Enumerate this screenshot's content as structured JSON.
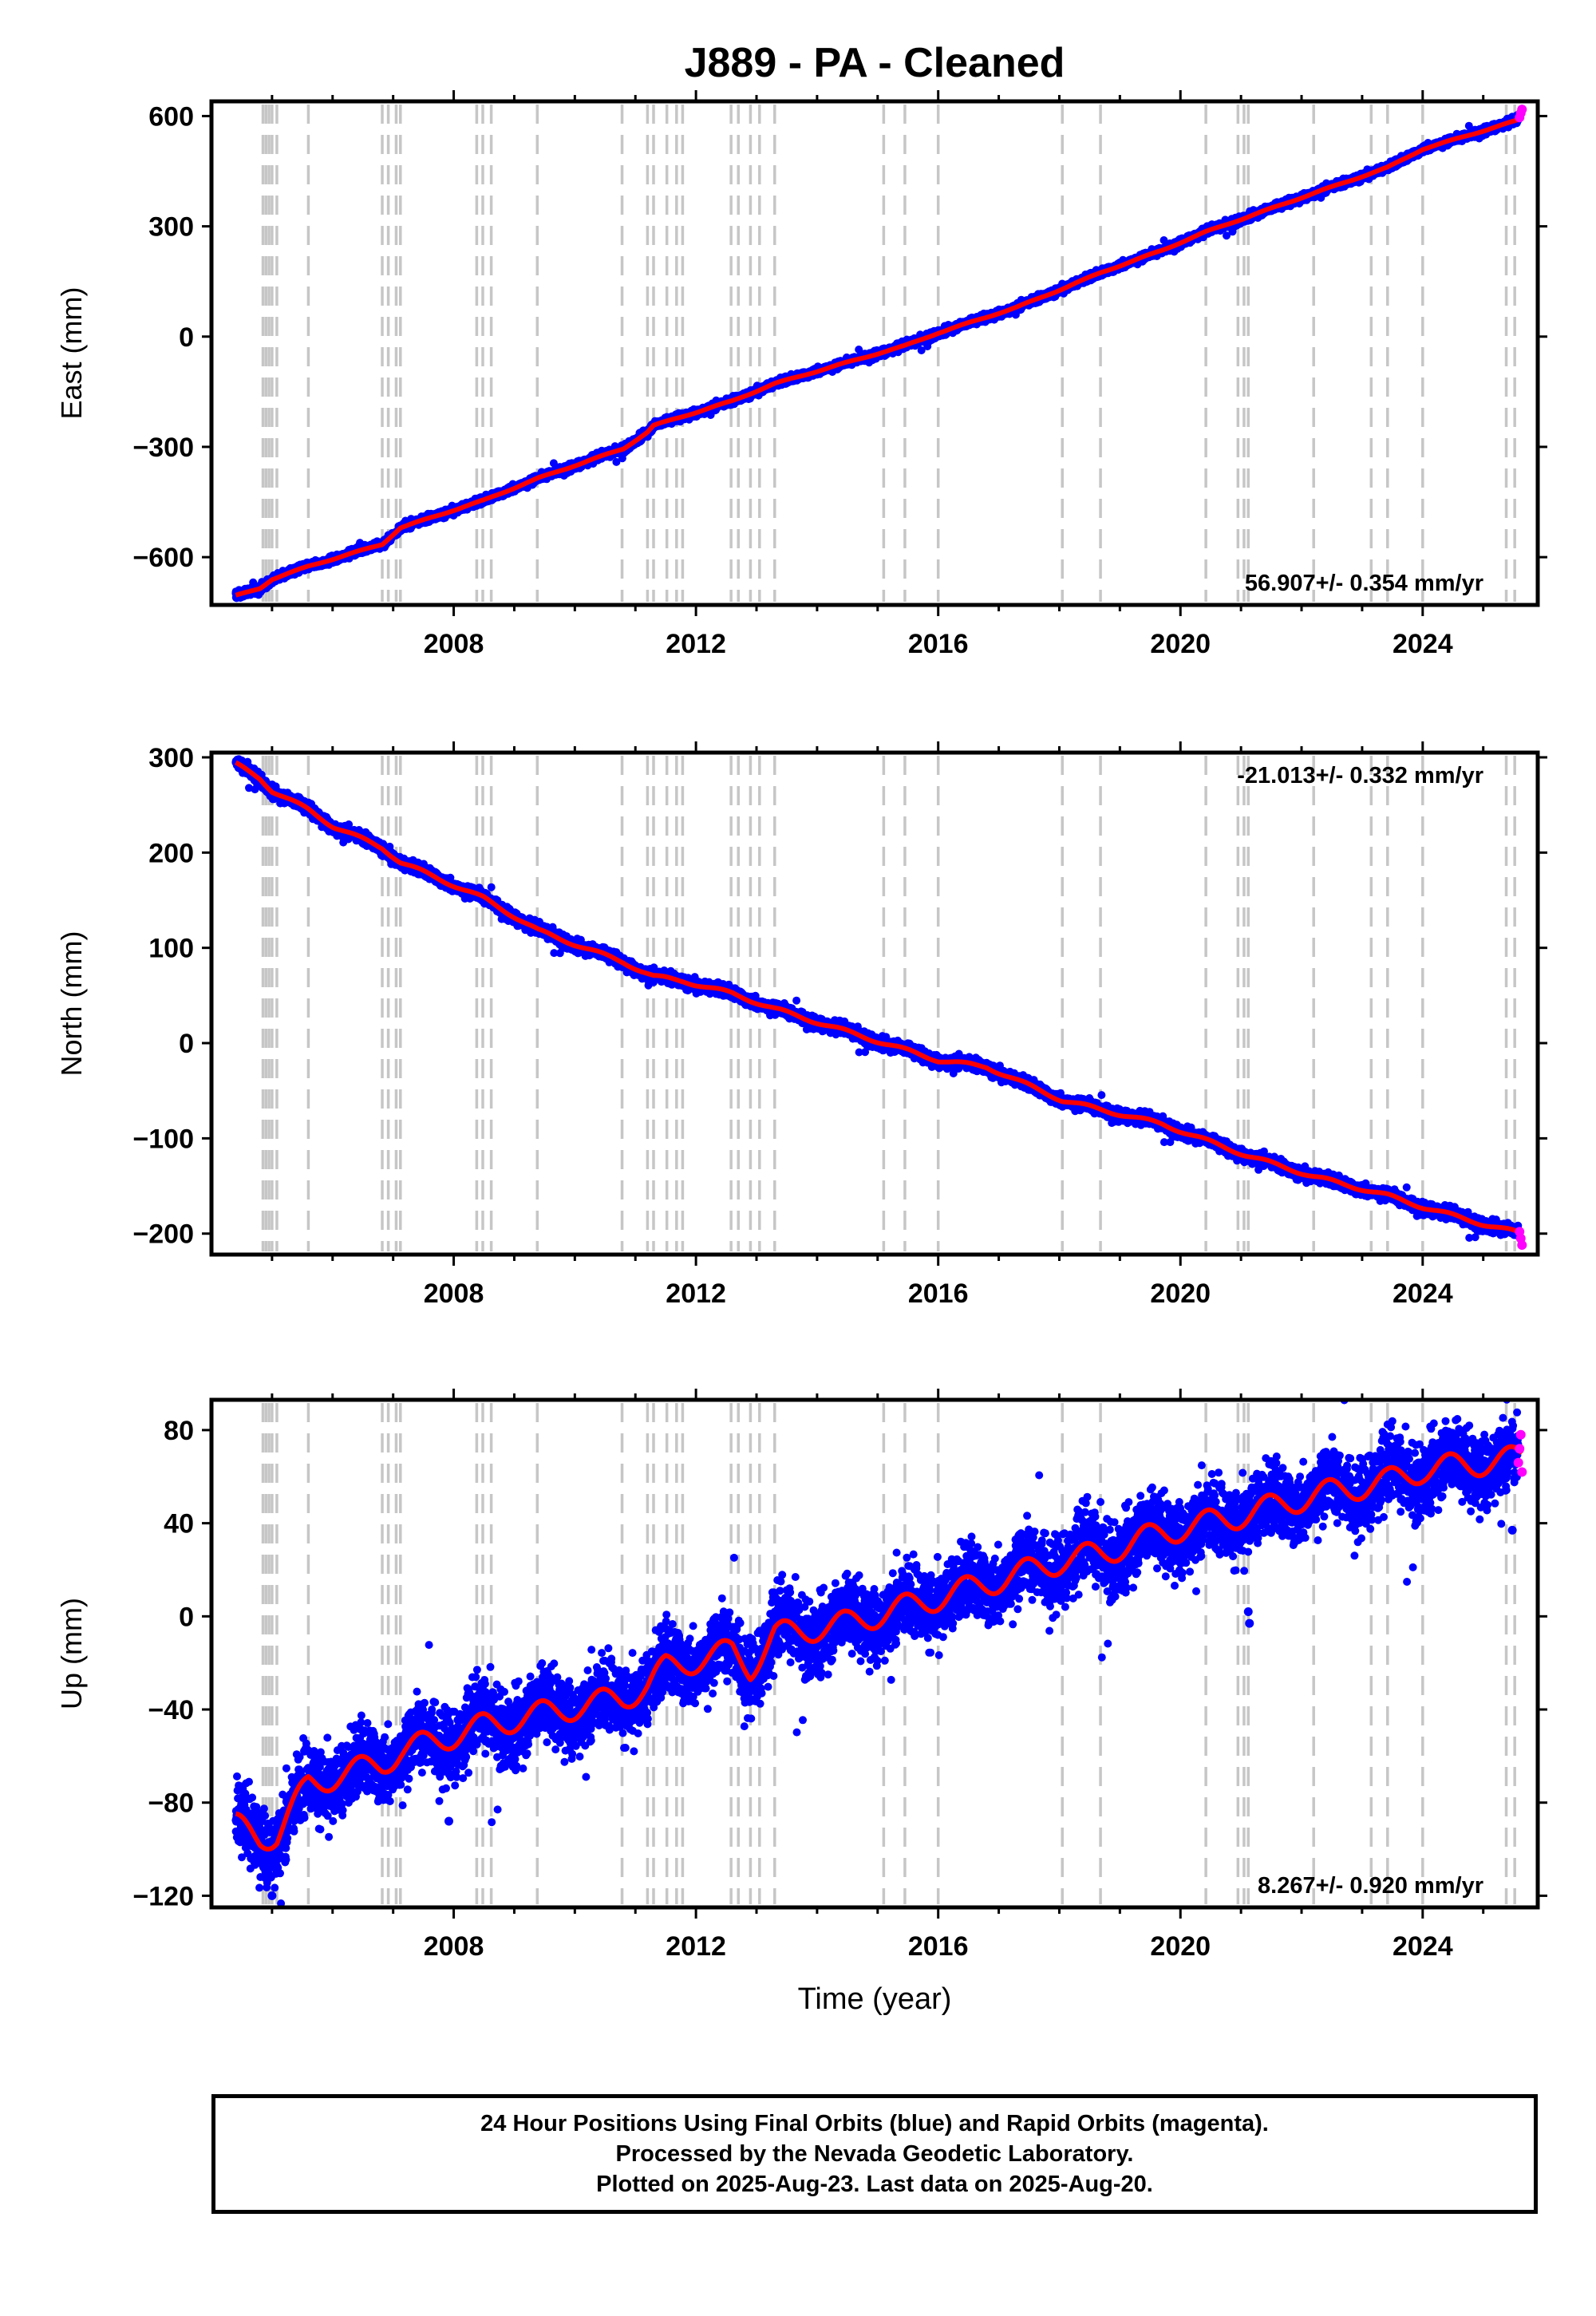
{
  "chart_data": {
    "title": "J889  - PA - Cleaned",
    "xlabel": "Time (year)",
    "xlim": [
      2004.0,
      2025.9
    ],
    "x_ticks": [
      2008,
      2012,
      2016,
      2020,
      2024
    ],
    "x_tick_labels": [
      "2008",
      "2012",
      "2016",
      "2020",
      "2024"
    ],
    "start_year": 2004.4,
    "end_year": 2025.64,
    "equipment_change_years": [
      2004.85,
      2004.9,
      2004.95,
      2005.0,
      2005.08,
      2005.6,
      2006.82,
      2006.92,
      2007.05,
      2007.12,
      2008.38,
      2008.48,
      2008.62,
      2009.38,
      2010.78,
      2011.2,
      2011.3,
      2011.52,
      2011.68,
      2011.78,
      2012.58,
      2012.7,
      2012.9,
      2013.05,
      2013.3,
      2015.1,
      2015.45,
      2016.0,
      2018.05,
      2018.68,
      2020.42,
      2020.95,
      2021.05,
      2021.12,
      2022.2,
      2023.15,
      2023.42,
      2024.0,
      2025.38,
      2025.52
    ],
    "series": [
      {
        "name": "Final Orbits (blue)",
        "color": "#0000ff"
      },
      {
        "name": "Rapid Orbits (magenta)",
        "color": "#ff00ff"
      },
      {
        "name": "Model fit",
        "color": "#ff0000"
      }
    ],
    "panels": [
      {
        "type": "scatter",
        "ylabel": "East (mm)",
        "ylim": [
          -730,
          640
        ],
        "y_ticks": [
          -600,
          -300,
          0,
          300,
          600
        ],
        "y_tick_labels": [
          "−600",
          "−300",
          "0",
          "300",
          "600"
        ],
        "rate_label": "56.907+/- 0.354 mm/yr",
        "rate_position": "bottom-right",
        "trend": {
          "rate_mm_per_yr": 56.907,
          "y_at_start": -705,
          "annual_amplitude": 1.5
        },
        "fit_knots": [
          [
            2004.4,
            -705
          ],
          [
            2004.8,
            -685
          ],
          [
            2005.0,
            -660
          ],
          [
            2005.6,
            -625
          ],
          [
            2006.82,
            -565
          ],
          [
            2007.12,
            -520
          ],
          [
            2008.5,
            -445
          ],
          [
            2009.4,
            -385
          ],
          [
            2010.8,
            -305
          ],
          [
            2011.2,
            -260
          ],
          [
            2011.3,
            -242
          ],
          [
            2012.6,
            -175
          ],
          [
            2013.3,
            -128
          ],
          [
            2014.5,
            -70
          ],
          [
            2015.45,
            -25
          ],
          [
            2016.0,
            10
          ],
          [
            2017.3,
            80
          ],
          [
            2018.05,
            130
          ],
          [
            2018.7,
            175
          ],
          [
            2019.7,
            235
          ],
          [
            2020.42,
            285
          ],
          [
            2021.1,
            325
          ],
          [
            2022.2,
            390
          ],
          [
            2023.42,
            460
          ],
          [
            2024.0,
            510
          ],
          [
            2025.0,
            560
          ],
          [
            2025.64,
            592
          ]
        ],
        "noise": 5,
        "magenta_points": [
          [
            2025.6,
            596
          ],
          [
            2025.62,
            608
          ],
          [
            2025.64,
            618
          ]
        ]
      },
      {
        "type": "scatter",
        "ylabel": "North (mm)",
        "ylim": [
          -222,
          305
        ],
        "y_ticks": [
          -200,
          -100,
          0,
          100,
          200,
          300
        ],
        "y_tick_labels": [
          "−200",
          "−100",
          "0",
          "100",
          "200",
          "300"
        ],
        "rate_label": "-21.013+/- 0.332 mm/yr",
        "rate_position": "top-right",
        "trend": {
          "rate_mm_per_yr": -21.013,
          "y_at_start": 293,
          "annual_amplitude": 1.8
        },
        "fit_knots": [
          [
            2004.4,
            293
          ],
          [
            2004.8,
            278
          ],
          [
            2005.0,
            265
          ],
          [
            2005.6,
            245
          ],
          [
            2006.0,
            228
          ],
          [
            2006.82,
            205
          ],
          [
            2007.12,
            190
          ],
          [
            2008.5,
            152
          ],
          [
            2009.4,
            118
          ],
          [
            2010.8,
            85
          ],
          [
            2011.3,
            70
          ],
          [
            2011.8,
            65
          ],
          [
            2012.6,
            52
          ],
          [
            2013.3,
            36
          ],
          [
            2014.5,
            12
          ],
          [
            2015.1,
            0
          ],
          [
            2016.0,
            -18
          ],
          [
            2016.8,
            -25
          ],
          [
            2018.05,
            -60
          ],
          [
            2018.7,
            -70
          ],
          [
            2019.7,
            -85
          ],
          [
            2020.42,
            -102
          ],
          [
            2021.1,
            -118
          ],
          [
            2022.2,
            -140
          ],
          [
            2023.42,
            -160
          ],
          [
            2024.0,
            -172
          ],
          [
            2025.0,
            -190
          ],
          [
            2025.64,
            -200
          ]
        ],
        "noise": 3,
        "magenta_points": [
          [
            2025.6,
            -198
          ],
          [
            2025.62,
            -205
          ],
          [
            2025.64,
            -212
          ]
        ]
      },
      {
        "type": "scatter",
        "ylabel": "Up (mm)",
        "ylim": [
          -125,
          93
        ],
        "y_ticks": [
          -120,
          -80,
          -40,
          0,
          40,
          80
        ],
        "y_tick_labels": [
          "−120",
          "−80",
          "−40",
          "0",
          "40",
          "80"
        ],
        "rate_label": "8.267+/- 0.920 mm/yr",
        "rate_position": "bottom-right",
        "trend": {
          "rate_mm_per_yr": 8.267,
          "y_at_start": -90,
          "annual_amplitude": 5.5
        },
        "fit_knots": [
          [
            2004.4,
            -90
          ],
          [
            2004.8,
            -95
          ],
          [
            2005.08,
            -94
          ],
          [
            2005.6,
            -72
          ],
          [
            2006.82,
            -63
          ],
          [
            2007.12,
            -58
          ],
          [
            2008.5,
            -47
          ],
          [
            2009.4,
            -42
          ],
          [
            2010.8,
            -35
          ],
          [
            2011.2,
            -30
          ],
          [
            2011.5,
            -22
          ],
          [
            2012.6,
            -15
          ],
          [
            2012.9,
            -22
          ],
          [
            2013.3,
            -8
          ],
          [
            2014.5,
            -3
          ],
          [
            2015.45,
            4
          ],
          [
            2016.0,
            8
          ],
          [
            2017.3,
            18
          ],
          [
            2018.05,
            24
          ],
          [
            2018.7,
            27
          ],
          [
            2019.7,
            36
          ],
          [
            2020.42,
            40
          ],
          [
            2021.1,
            44
          ],
          [
            2022.2,
            52
          ],
          [
            2023.42,
            58
          ],
          [
            2024.0,
            63
          ],
          [
            2025.0,
            66
          ],
          [
            2025.64,
            68
          ]
        ],
        "noise": 7.5,
        "outlier_points": [
          [
            2004.98,
            -112
          ],
          [
            2005.0,
            -120
          ],
          [
            2005.05,
            -108
          ],
          [
            2007.92,
            -88
          ],
          [
            2021.12,
            2
          ],
          [
            2021.14,
            -3
          ],
          [
            2025.48,
            37
          ]
        ],
        "magenta_points": [
          [
            2025.58,
            66
          ],
          [
            2025.6,
            72
          ],
          [
            2025.62,
            78
          ],
          [
            2025.64,
            62
          ]
        ]
      }
    ]
  },
  "footer": {
    "line1": "24 Hour Positions Using Final Orbits (blue) and Rapid Orbits (magenta).",
    "line2": "Processed by the Nevada Geodetic Laboratory.",
    "line3": "Plotted on 2025-Aug-23. Last data on 2025-Aug-20."
  }
}
